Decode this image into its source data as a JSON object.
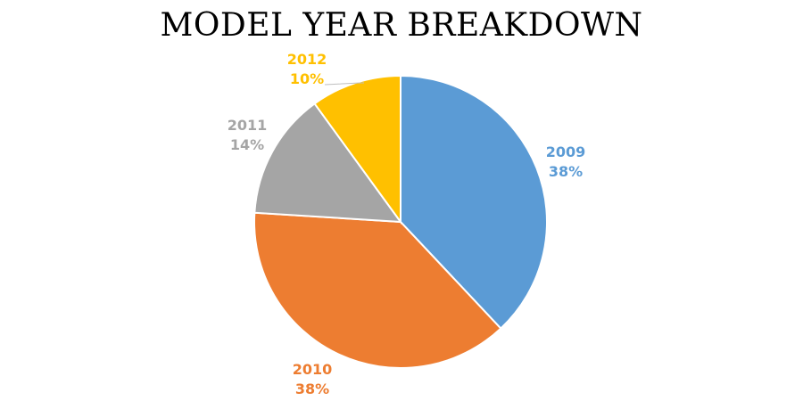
{
  "chart_data": {
    "type": "pie",
    "title": "MODEL YEAR BREAKDOWN",
    "slices": [
      {
        "label": "2009",
        "value": 38,
        "percent_label": "38%",
        "color": "#5B9BD5"
      },
      {
        "label": "2010",
        "value": 38,
        "percent_label": "38%",
        "color": "#ED7D31"
      },
      {
        "label": "2011",
        "value": 14,
        "percent_label": "14%",
        "color": "#A5A5A5"
      },
      {
        "label": "2012",
        "value": 10,
        "percent_label": "10%",
        "color": "#FFC000"
      }
    ],
    "legend": "none",
    "data_labels": "outside"
  }
}
